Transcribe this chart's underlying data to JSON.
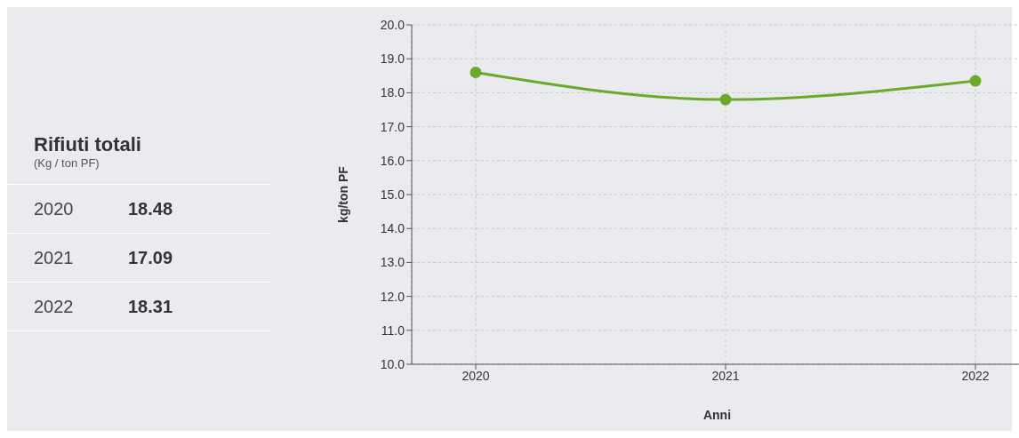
{
  "chart_data": {
    "type": "line",
    "title": "Rifiuti totali",
    "subtitle": "(Kg / ton PF)",
    "xlabel": "Anni",
    "ylabel": "kg/ton PF",
    "categories": [
      "2020",
      "2021",
      "2022"
    ],
    "series": [
      {
        "color": "#6aaa2a",
        "values": [
          18.6,
          17.8,
          18.35
        ]
      }
    ],
    "ylim": [
      10,
      20
    ],
    "yticks": [
      {
        "value": 10,
        "label": "10.0"
      },
      {
        "value": 11,
        "label": "11.0"
      },
      {
        "value": 12,
        "label": "12.0"
      },
      {
        "value": 13,
        "label": "13.0"
      },
      {
        "value": 14,
        "label": "14.0"
      },
      {
        "value": 15,
        "label": "15.0"
      },
      {
        "value": 16,
        "label": "16.0"
      },
      {
        "value": 17,
        "label": "17.0"
      },
      {
        "value": 18,
        "label": "18.0"
      },
      {
        "value": 19,
        "label": "19.0"
      },
      {
        "value": 20,
        "label": "20.0"
      }
    ],
    "annotations": [
      "2020",
      "18.48",
      "2021",
      "17.09",
      "2022",
      "18.31"
    ],
    "grid": true,
    "marker": "circle",
    "line_style": "solid"
  }
}
